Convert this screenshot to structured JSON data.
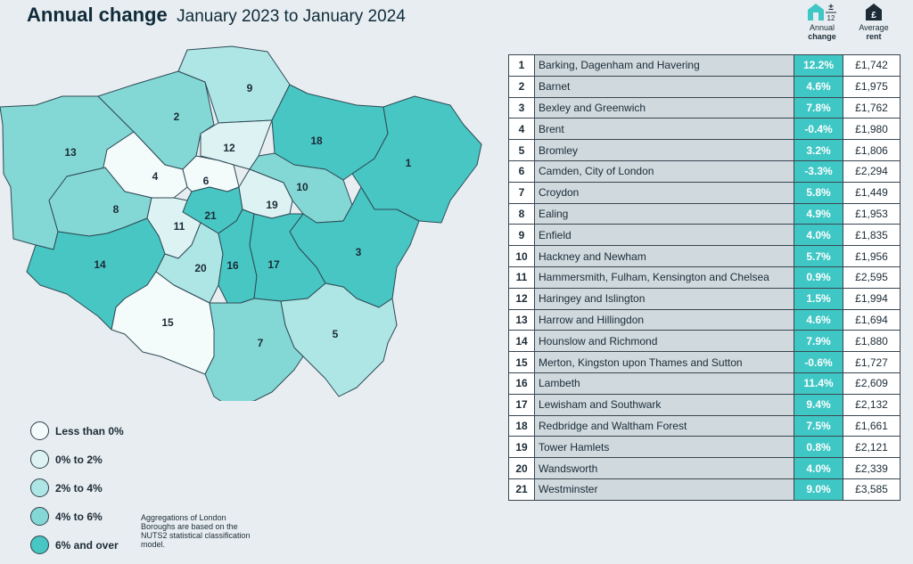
{
  "title": "Annual change",
  "subtitle": "January 2023 to January 2024",
  "columns": {
    "change_line1": "Annual",
    "change_line2": "change",
    "rent_line1": "Average",
    "rent_line2": "rent",
    "change_icon": "house-plus-minus-icon",
    "rent_icon": "house-pound-icon",
    "icon_pm": "±",
    "icon_12": "12",
    "icon_pound": "£"
  },
  "colors": {
    "lt0": "#f4fbfb",
    "0to2": "#ddf3f3",
    "2to4": "#aee6e5",
    "4to6": "#83d8d6",
    "6plus": "#47c6c3",
    "change_cell": "#3fc7c5"
  },
  "rows": [
    {
      "n": "1",
      "name": "Barking, Dagenham and Havering",
      "change": "12.2%",
      "rent": "£1,742"
    },
    {
      "n": "2",
      "name": "Barnet",
      "change": "4.6%",
      "rent": "£1,975"
    },
    {
      "n": "3",
      "name": "Bexley and Greenwich",
      "change": "7.8%",
      "rent": "£1,762"
    },
    {
      "n": "4",
      "name": "Brent",
      "change": "-0.4%",
      "rent": "£1,980"
    },
    {
      "n": "5",
      "name": "Bromley",
      "change": "3.2%",
      "rent": "£1,806"
    },
    {
      "n": "6",
      "name": "Camden, City of London",
      "change": "-3.3%",
      "rent": "£2,294"
    },
    {
      "n": "7",
      "name": "Croydon",
      "change": "5.8%",
      "rent": "£1,449"
    },
    {
      "n": "8",
      "name": "Ealing",
      "change": "4.9%",
      "rent": "£1,953"
    },
    {
      "n": "9",
      "name": "Enfield",
      "change": "4.0%",
      "rent": "£1,835"
    },
    {
      "n": "10",
      "name": "Hackney and Newham",
      "change": "5.7%",
      "rent": "£1,956"
    },
    {
      "n": "11",
      "name": "Hammersmith, Fulham, Kensington and Chelsea",
      "change": "0.9%",
      "rent": "£2,595"
    },
    {
      "n": "12",
      "name": "Haringey and Islington",
      "change": "1.5%",
      "rent": "£1,994"
    },
    {
      "n": "13",
      "name": "Harrow and Hillingdon",
      "change": "4.6%",
      "rent": "£1,694"
    },
    {
      "n": "14",
      "name": "Hounslow and Richmond",
      "change": "7.9%",
      "rent": "£1,880"
    },
    {
      "n": "15",
      "name": "Merton, Kingston upon Thames and Sutton",
      "change": "-0.6%",
      "rent": "£1,727"
    },
    {
      "n": "16",
      "name": "Lambeth",
      "change": "11.4%",
      "rent": "£2,609"
    },
    {
      "n": "17",
      "name": "Lewisham and Southwark",
      "change": "9.4%",
      "rent": "£2,132"
    },
    {
      "n": "18",
      "name": "Redbridge and Waltham Forest",
      "change": "7.5%",
      "rent": "£1,661"
    },
    {
      "n": "19",
      "name": "Tower Hamlets",
      "change": "0.8%",
      "rent": "£2,121"
    },
    {
      "n": "20",
      "name": "Wandsworth",
      "change": "4.0%",
      "rent": "£2,339"
    },
    {
      "n": "21",
      "name": "Westminster",
      "change": "9.0%",
      "rent": "£3,585"
    }
  ],
  "legend": [
    {
      "label": "Less than 0%",
      "color": "#f4fbfb"
    },
    {
      "label": "0% to 2%",
      "color": "#ddf3f3"
    },
    {
      "label": "2% to 4%",
      "color": "#aee6e5"
    },
    {
      "label": "4% to 6%",
      "color": "#83d8d6"
    },
    {
      "label": "6% and over",
      "color": "#47c6c3"
    }
  ],
  "note": "Aggregations of London Boroughs are based on the NUTS2 statistical classification model.",
  "map": {
    "regions": [
      {
        "id": "1",
        "band": "6plus"
      },
      {
        "id": "2",
        "band": "4to6"
      },
      {
        "id": "3",
        "band": "6plus"
      },
      {
        "id": "4",
        "band": "lt0"
      },
      {
        "id": "5",
        "band": "2to4"
      },
      {
        "id": "6",
        "band": "lt0"
      },
      {
        "id": "7",
        "band": "4to6"
      },
      {
        "id": "8",
        "band": "4to6"
      },
      {
        "id": "9",
        "band": "2to4"
      },
      {
        "id": "10",
        "band": "4to6"
      },
      {
        "id": "11",
        "band": "0to2"
      },
      {
        "id": "12",
        "band": "0to2"
      },
      {
        "id": "13",
        "band": "4to6"
      },
      {
        "id": "14",
        "band": "6plus"
      },
      {
        "id": "15",
        "band": "lt0"
      },
      {
        "id": "16",
        "band": "6plus"
      },
      {
        "id": "17",
        "band": "6plus"
      },
      {
        "id": "18",
        "band": "6plus"
      },
      {
        "id": "19",
        "band": "0to2"
      },
      {
        "id": "20",
        "band": "2to4"
      },
      {
        "id": "21",
        "band": "6plus"
      }
    ]
  }
}
